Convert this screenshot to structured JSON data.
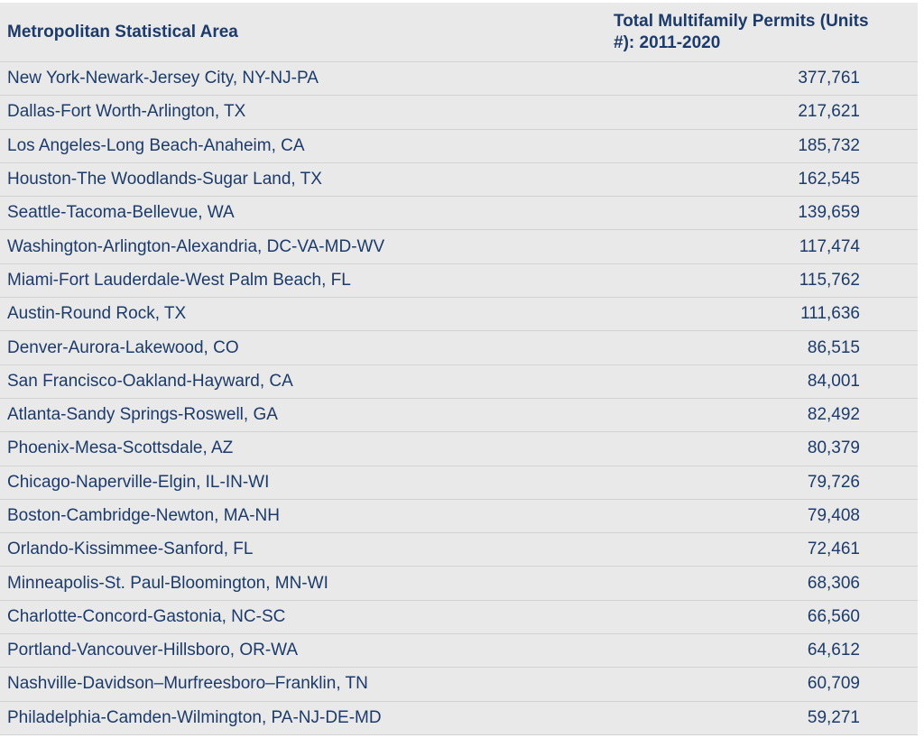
{
  "chart_data": {
    "type": "table",
    "title": "",
    "columns": [
      "Metropolitan Statistical Area",
      "Total Multifamily Permits (Units #): 2011-2020"
    ],
    "categories": [
      "New York-Newark-Jersey City, NY-NJ-PA",
      "Dallas-Fort Worth-Arlington, TX",
      "Los Angeles-Long Beach-Anaheim, CA",
      "Houston-The Woodlands-Sugar Land, TX",
      "Seattle-Tacoma-Bellevue, WA",
      "Washington-Arlington-Alexandria, DC-VA-MD-WV",
      "Miami-Fort Lauderdale-West Palm Beach, FL",
      "Austin-Round Rock, TX",
      "Denver-Aurora-Lakewood, CO",
      "San Francisco-Oakland-Hayward, CA",
      "Atlanta-Sandy Springs-Roswell, GA",
      "Phoenix-Mesa-Scottsdale, AZ",
      "Chicago-Naperville-Elgin, IL-IN-WI",
      "Boston-Cambridge-Newton, MA-NH",
      "Orlando-Kissimmee-Sanford, FL",
      "Minneapolis-St. Paul-Bloomington, MN-WI",
      "Charlotte-Concord-Gastonia, NC-SC",
      "Portland-Vancouver-Hillsboro, OR-WA",
      "Nashville-Davidson–Murfreesboro–Franklin, TN",
      "Philadelphia-Camden-Wilmington, PA-NJ-DE-MD"
    ],
    "values": [
      377761,
      217621,
      185732,
      162545,
      139659,
      117474,
      115762,
      111636,
      86515,
      84001,
      82492,
      80379,
      79726,
      79408,
      72461,
      68306,
      66560,
      64612,
      60709,
      59271
    ]
  },
  "table": {
    "header": {
      "msa_label": "Metropolitan Statistical Area",
      "permits_label": "Total Multifamily Permits (Units #): 2011-2020"
    },
    "rows": [
      {
        "msa": "New York-Newark-Jersey City, NY-NJ-PA",
        "permits": "377,761"
      },
      {
        "msa": "Dallas-Fort Worth-Arlington, TX",
        "permits": "217,621"
      },
      {
        "msa": "Los Angeles-Long Beach-Anaheim, CA",
        "permits": "185,732"
      },
      {
        "msa": "Houston-The Woodlands-Sugar Land, TX",
        "permits": "162,545"
      },
      {
        "msa": "Seattle-Tacoma-Bellevue, WA",
        "permits": "139,659"
      },
      {
        "msa": "Washington-Arlington-Alexandria, DC-VA-MD-WV",
        "permits": "117,474"
      },
      {
        "msa": "Miami-Fort Lauderdale-West Palm Beach, FL",
        "permits": "115,762"
      },
      {
        "msa": "Austin-Round Rock, TX",
        "permits": "111,636"
      },
      {
        "msa": "Denver-Aurora-Lakewood, CO",
        "permits": "86,515"
      },
      {
        "msa": "San Francisco-Oakland-Hayward, CA",
        "permits": "84,001"
      },
      {
        "msa": "Atlanta-Sandy Springs-Roswell, GA",
        "permits": "82,492"
      },
      {
        "msa": "Phoenix-Mesa-Scottsdale, AZ",
        "permits": "80,379"
      },
      {
        "msa": "Chicago-Naperville-Elgin, IL-IN-WI",
        "permits": "79,726"
      },
      {
        "msa": "Boston-Cambridge-Newton, MA-NH",
        "permits": "79,408"
      },
      {
        "msa": "Orlando-Kissimmee-Sanford, FL",
        "permits": "72,461"
      },
      {
        "msa": "Minneapolis-St. Paul-Bloomington, MN-WI",
        "permits": "68,306"
      },
      {
        "msa": "Charlotte-Concord-Gastonia, NC-SC",
        "permits": "66,560"
      },
      {
        "msa": "Portland-Vancouver-Hillsboro, OR-WA",
        "permits": "64,612"
      },
      {
        "msa": "Nashville-Davidson–Murfreesboro–Franklin, TN",
        "permits": "60,709"
      },
      {
        "msa": "Philadelphia-Camden-Wilmington, PA-NJ-DE-MD",
        "permits": "59,271"
      }
    ]
  },
  "colors": {
    "text_navy": "#1c3b6a",
    "row_background": "#e9e9e9",
    "divider": "#d2d2d2",
    "page_background": "#ffffff"
  }
}
